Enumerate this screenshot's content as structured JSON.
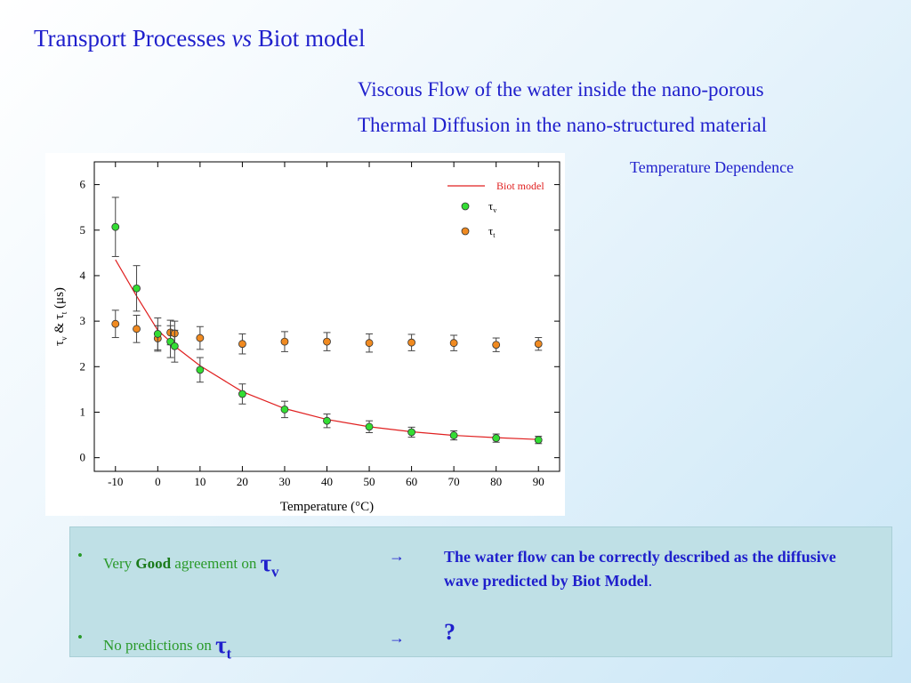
{
  "slide": {
    "title_main": "Transport Processes ",
    "title_vs": "vs",
    "title_end": " Biot model",
    "subtitle1": "Viscous Flow of the water inside the nano-porous",
    "subtitle2": "Thermal Diffusion in the nano-structured material",
    "temperature_dependence": "Temperature Dependence"
  },
  "summary": {
    "row1": {
      "pre": "Very ",
      "bold": "Good",
      "post": " agreement on ",
      "symbol": "τ",
      "subscript": "v",
      "arrow": "→",
      "result_bold": "The water flow can be correctly described as the diffusive wave predicted by Biot Model",
      "result_tail": "."
    },
    "row2": {
      "pre": "No predictions on ",
      "symbol": "τ",
      "subscript": "t",
      "arrow": "→",
      "result": "?"
    }
  },
  "chart_data": {
    "type": "scatter",
    "xlabel": "Temperature (°C)",
    "ylabel_parts": [
      "τ",
      "v",
      " & ",
      "τ",
      "t",
      " (μs)"
    ],
    "xlim": [
      -15,
      95
    ],
    "ylim": [
      -0.3,
      6.5
    ],
    "xticks": [
      -10,
      0,
      10,
      20,
      30,
      40,
      50,
      60,
      70,
      80,
      90
    ],
    "yticks": [
      0,
      1,
      2,
      3,
      4,
      5,
      6
    ],
    "legend_position": "top-right",
    "colors": {
      "biot": "#e02020",
      "tau_v": "#33dd33",
      "tau_t": "#f08a20"
    },
    "series": [
      {
        "name": "Biot model",
        "kind": "line",
        "x": [
          -10,
          -5,
          0,
          3,
          4,
          10,
          20,
          30,
          40,
          50,
          60,
          70,
          80,
          90
        ],
        "y": [
          4.35,
          3.55,
          2.8,
          2.55,
          2.45,
          2.02,
          1.45,
          1.08,
          0.84,
          0.68,
          0.57,
          0.49,
          0.44,
          0.4
        ]
      },
      {
        "name": "τ",
        "sub": "v",
        "kind": "scatter",
        "x": [
          -10,
          -5,
          0,
          3,
          4,
          10,
          20,
          30,
          40,
          50,
          60,
          70,
          80,
          90
        ],
        "y": [
          5.07,
          3.72,
          2.72,
          2.55,
          2.45,
          1.93,
          1.4,
          1.06,
          0.81,
          0.68,
          0.56,
          0.49,
          0.43,
          0.39
        ],
        "err": [
          0.65,
          0.5,
          0.35,
          0.35,
          0.35,
          0.27,
          0.22,
          0.18,
          0.15,
          0.13,
          0.11,
          0.1,
          0.09,
          0.08
        ]
      },
      {
        "name": "τ",
        "sub": "t",
        "kind": "scatter",
        "x": [
          -10,
          -5,
          0,
          3,
          4,
          10,
          20,
          30,
          40,
          50,
          60,
          70,
          80,
          90
        ],
        "y": [
          2.94,
          2.83,
          2.62,
          2.75,
          2.73,
          2.63,
          2.5,
          2.55,
          2.55,
          2.52,
          2.53,
          2.52,
          2.48,
          2.5
        ],
        "err": [
          0.3,
          0.3,
          0.28,
          0.27,
          0.27,
          0.25,
          0.22,
          0.22,
          0.2,
          0.2,
          0.18,
          0.17,
          0.15,
          0.14
        ]
      }
    ]
  }
}
